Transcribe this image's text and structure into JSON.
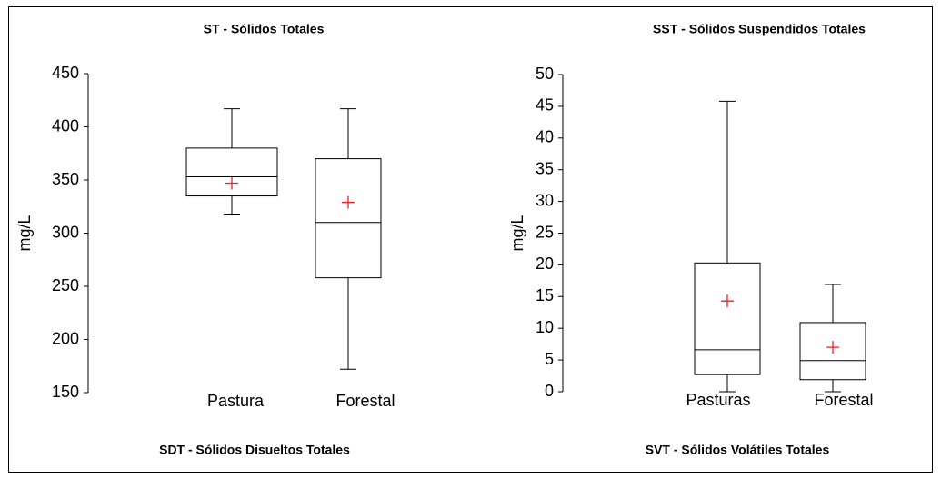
{
  "chart_data": [
    {
      "type": "box",
      "title": "ST - Sólidos Totales",
      "ylabel": "mg/L",
      "caption": "SDT - Sólidos Disueltos Totales",
      "categories": [
        "Pastura",
        "Forestal"
      ],
      "min": [
        318,
        172
      ],
      "q1": [
        335,
        258
      ],
      "median": [
        353,
        310
      ],
      "q3": [
        380,
        370
      ],
      "max": [
        417,
        417
      ],
      "mean": [
        347,
        329
      ],
      "ylim": [
        150,
        450
      ],
      "yticks": [
        150,
        200,
        250,
        300,
        350,
        400,
        450
      ],
      "color": "#000000",
      "mean_color": "#e8202a"
    },
    {
      "type": "box",
      "title": "SST - Sólidos Suspendidos Totales",
      "ylabel": "mg/L",
      "caption": "SVT - Sólidos Volátiles Totales",
      "categories": [
        "Pasturas",
        "Forestal"
      ],
      "min": [
        0,
        0
      ],
      "q1": [
        2.7,
        1.9
      ],
      "median": [
        6.6,
        4.9
      ],
      "q3": [
        20.3,
        10.9
      ],
      "max": [
        45.8,
        16.9
      ],
      "mean": [
        14.3,
        7.0
      ],
      "ylim": [
        0,
        50
      ],
      "yticks": [
        0,
        5,
        10,
        15,
        20,
        25,
        30,
        35,
        40,
        45,
        50
      ],
      "color": "#000000",
      "mean_color": "#e8202a"
    }
  ]
}
